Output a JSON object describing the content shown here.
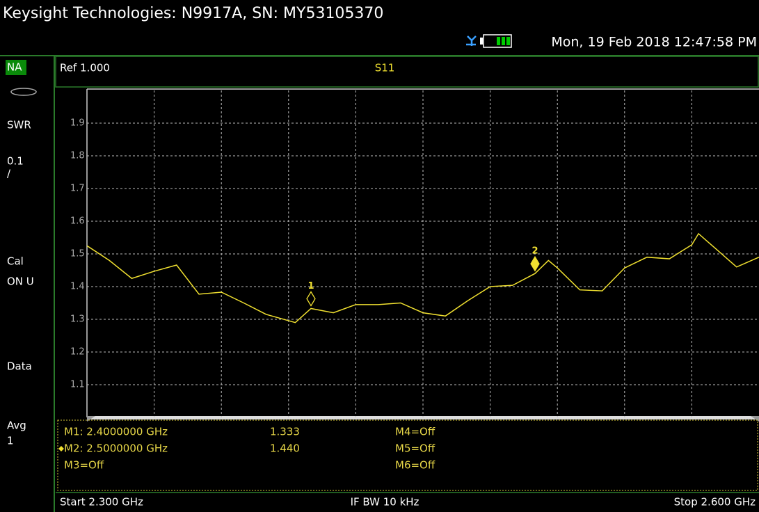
{
  "title_bar": "Keysight Technologies: N9917A, SN: MY53105370",
  "datetime": "Mon, 19 Feb 2018 12:47:58 PM",
  "sidebar": [
    "NA",
    "SWR",
    "0.1",
    "/",
    "Cal",
    "ON U",
    "Data",
    "Avg",
    "1"
  ],
  "header": {
    "ref": "Ref 1.000"
  },
  "marker_table": [
    [
      "M1:  2.4000000 GHz",
      "M4=Off"
    ],
    [
      "M2:  2.5000000 GHz",
      "M5=Off"
    ],
    [
      "M3=Off",
      "M6=Off"
    ]
  ],
  "footer": {
    "start": "Start 2.300 GHz",
    "ifbw": "IF BW 10 kHz",
    "stop": "Stop 2.600 GHz"
  },
  "chart_data": {
    "type": "line",
    "title": "S11",
    "xlim": [
      2.3,
      2.6
    ],
    "ylim": [
      1.0,
      2.0
    ],
    "yticks": [
      1.1,
      1.2,
      1.3,
      1.4,
      1.5,
      1.6,
      1.7,
      1.8,
      1.9
    ],
    "grid": true,
    "series": [
      {
        "color": "#f0e030",
        "x": [
          2.3,
          2.31,
          2.32,
          2.33,
          2.34,
          2.35,
          2.36,
          2.37,
          2.38,
          2.393,
          2.4,
          2.41,
          2.42,
          2.43,
          2.44,
          2.45,
          2.46,
          2.47,
          2.48,
          2.49,
          2.5,
          2.506,
          2.51,
          2.52,
          2.53,
          2.54,
          2.55,
          2.56,
          2.57,
          2.573,
          2.58,
          2.59,
          2.6
        ],
        "values": [
          1.525,
          1.48,
          1.425,
          1.447,
          1.466,
          1.377,
          1.383,
          1.35,
          1.315,
          1.29,
          1.333,
          1.32,
          1.345,
          1.345,
          1.35,
          1.32,
          1.31,
          1.357,
          1.4,
          1.404,
          1.44,
          1.48,
          1.457,
          1.39,
          1.387,
          1.457,
          1.49,
          1.485,
          1.528,
          1.562,
          1.52,
          1.46,
          1.49
        ]
      }
    ],
    "markers": [
      {
        "label": "1",
        "x": 2.4,
        "value": 1.333,
        "value_label": "1.333",
        "active": false
      },
      {
        "label": "2",
        "x": 2.5,
        "value": 1.44,
        "value_label": "1.440",
        "active": true
      }
    ]
  }
}
